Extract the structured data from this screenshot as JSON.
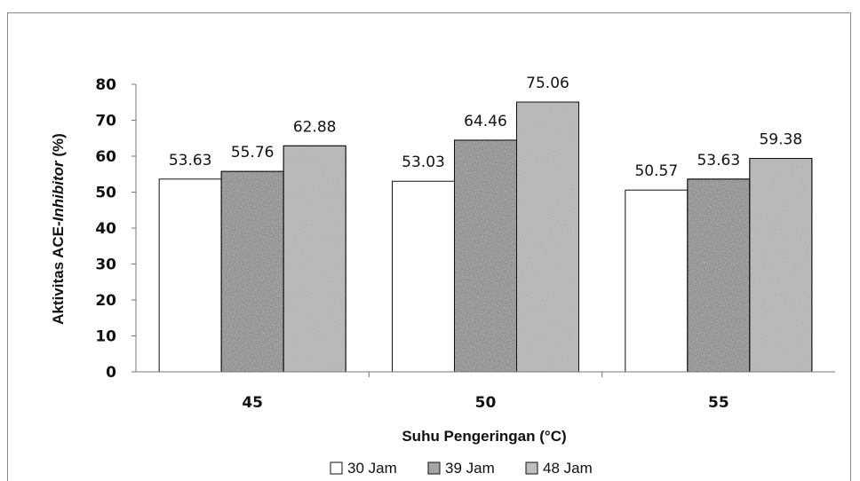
{
  "chart_data": {
    "type": "bar",
    "categories": [
      "45",
      "50",
      "55"
    ],
    "series": [
      {
        "name": "30 Jam",
        "values": [
          53.63,
          53.03,
          50.57
        ],
        "fill": "#ffffff"
      },
      {
        "name": "39 Jam",
        "values": [
          55.76,
          64.46,
          53.63
        ],
        "fill": "#8c8c8c"
      },
      {
        "name": "48 Jam",
        "values": [
          62.88,
          75.06,
          59.38
        ],
        "fill": "#b5b5b5"
      }
    ],
    "data_labels": [
      [
        "53.63",
        "55.76",
        "62.88"
      ],
      [
        "53.03",
        "64.46",
        "75.06"
      ],
      [
        "50.57",
        "53.63",
        "59.38"
      ]
    ],
    "xlabel": "Suhu Pengeringan (°C)",
    "ylabel_prefix": "Aktivitas ACE-",
    "ylabel_italic": "Inhibitor",
    "ylabel_suffix": " (%)",
    "ylim": [
      0,
      80
    ],
    "yticks": [
      "0",
      "10",
      "20",
      "30",
      "40",
      "50",
      "60",
      "70",
      "80"
    ],
    "grid": false,
    "legend_position": "bottom"
  }
}
